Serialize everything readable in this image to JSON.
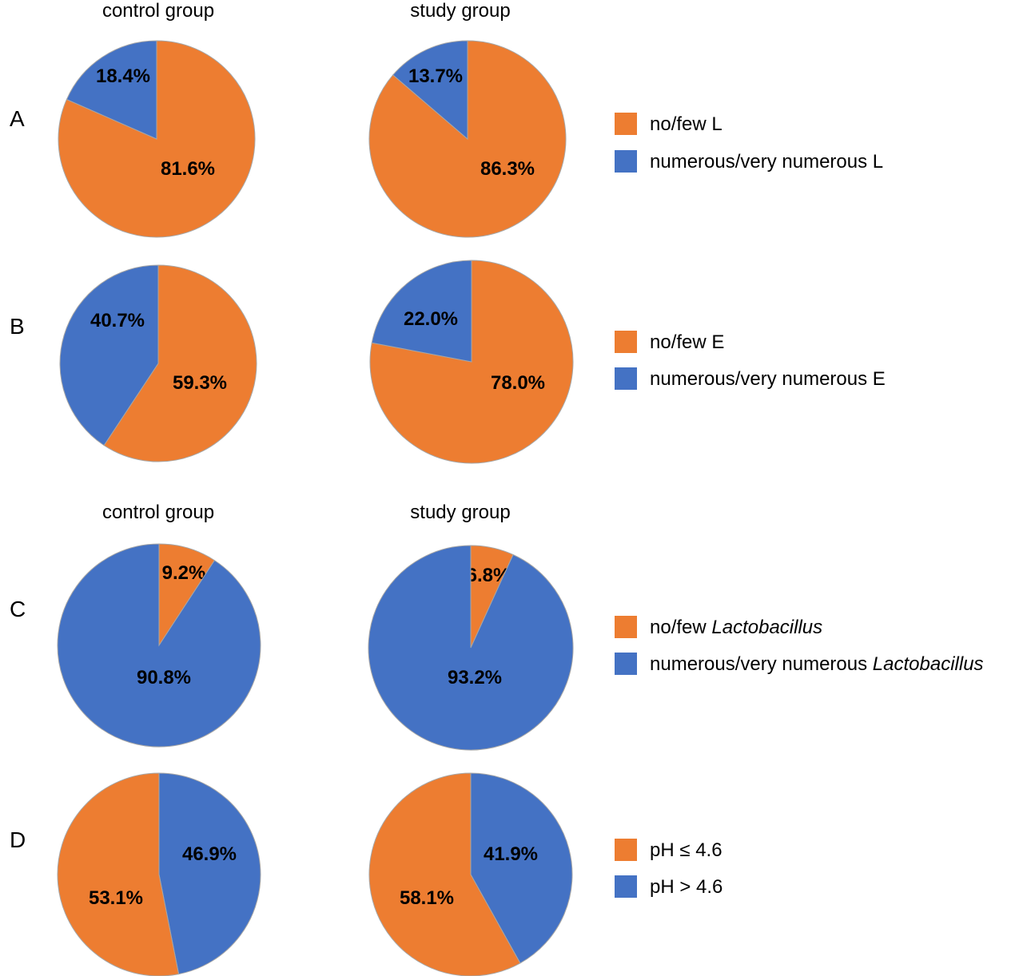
{
  "colors": {
    "orange": "#ED7D31",
    "blue": "#4472C4",
    "outline": "#A6A6A6"
  },
  "column_headers": {
    "top": [
      "control group",
      "study group"
    ],
    "bottom": [
      "control group",
      "study group"
    ]
  },
  "chart_data": [
    {
      "panel": "A",
      "type": "pie",
      "legend": [
        {
          "label": "no/few L",
          "color": "#ED7D31"
        },
        {
          "label": "numerous/very numerous L",
          "color": "#4472C4"
        }
      ],
      "pies": [
        {
          "group": "control group",
          "slices": [
            {
              "category": "no/few L",
              "value": 81.6,
              "label": "81.6%",
              "color": "#ED7D31"
            },
            {
              "category": "numerous/very numerous L",
              "value": 18.4,
              "label": "18.4%",
              "color": "#4472C4"
            }
          ]
        },
        {
          "group": "study group",
          "slices": [
            {
              "category": "no/few L",
              "value": 86.3,
              "label": "86.3%",
              "color": "#ED7D31"
            },
            {
              "category": "numerous/very numerous L",
              "value": 13.7,
              "label": "13.7%",
              "color": "#4472C4"
            }
          ]
        }
      ]
    },
    {
      "panel": "B",
      "type": "pie",
      "legend": [
        {
          "label": "no/few E",
          "color": "#ED7D31"
        },
        {
          "label": "numerous/very numerous E",
          "color": "#4472C4"
        }
      ],
      "pies": [
        {
          "group": "control group",
          "slices": [
            {
              "category": "no/few E",
              "value": 59.3,
              "label": "59.3%",
              "color": "#ED7D31"
            },
            {
              "category": "numerous/very numerous E",
              "value": 40.7,
              "label": "40.7%",
              "color": "#4472C4"
            }
          ]
        },
        {
          "group": "study group",
          "slices": [
            {
              "category": "no/few E",
              "value": 78.0,
              "label": "78.0%",
              "color": "#ED7D31"
            },
            {
              "category": "numerous/very numerous E",
              "value": 22.0,
              "label": "22.0%",
              "color": "#4472C4"
            }
          ]
        }
      ]
    },
    {
      "panel": "C",
      "type": "pie",
      "legend": [
        {
          "label": "no/few ",
          "italic": "Lactobacillus",
          "color": "#ED7D31"
        },
        {
          "label": "numerous/very numerous ",
          "italic": "Lactobacillus",
          "color": "#4472C4"
        }
      ],
      "pies": [
        {
          "group": "control group",
          "slices": [
            {
              "category": "no/few Lactobacillus",
              "value": 9.2,
              "label": "9.2%",
              "color": "#ED7D31"
            },
            {
              "category": "numerous/very numerous Lactobacillus",
              "value": 90.8,
              "label": "90.8%",
              "color": "#4472C4"
            }
          ]
        },
        {
          "group": "study group",
          "slices": [
            {
              "category": "no/few Lactobacillus",
              "value": 6.8,
              "label": "6.8%",
              "color": "#ED7D31"
            },
            {
              "category": "numerous/very numerous Lactobacillus",
              "value": 93.2,
              "label": "93.2%",
              "color": "#4472C4"
            }
          ]
        }
      ]
    },
    {
      "panel": "D",
      "type": "pie",
      "legend": [
        {
          "label": "pH ≤ 4.6",
          "color": "#ED7D31"
        },
        {
          "label": "pH > 4.6",
          "color": "#4472C4"
        }
      ],
      "pies": [
        {
          "group": "control group",
          "slices": [
            {
              "category": "pH > 4.6",
              "value": 46.9,
              "label": "46.9%",
              "color": "#4472C4"
            },
            {
              "category": "pH ≤ 4.6",
              "value": 53.1,
              "label": "53.1%",
              "color": "#ED7D31"
            }
          ]
        },
        {
          "group": "study group",
          "slices": [
            {
              "category": "pH > 4.6",
              "value": 41.9,
              "label": "41.9%",
              "color": "#4472C4"
            },
            {
              "category": "pH ≤ 4.6",
              "value": 58.1,
              "label": "58.1%",
              "color": "#ED7D31"
            }
          ]
        }
      ]
    }
  ]
}
